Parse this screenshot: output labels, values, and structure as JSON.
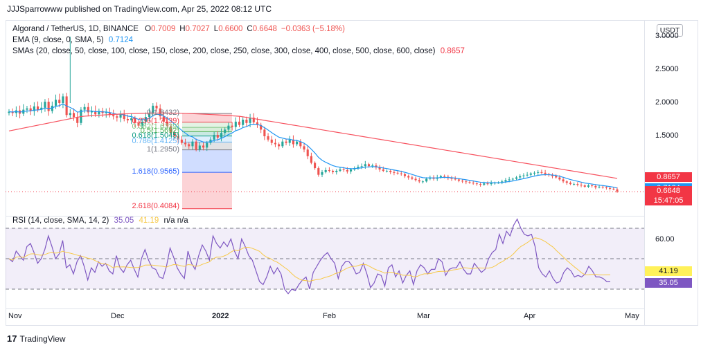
{
  "header": {
    "attribution": "JJJSparrowww published on TradingView.com, Apr 25, 2022 08:12 UTC"
  },
  "legend": {
    "symbol": "Algorand / TetherUS, 1D, BINANCE",
    "ohlc": [
      {
        "label": "O",
        "value": "0.7009"
      },
      {
        "label": "H",
        "value": "0.7027"
      },
      {
        "label": "L",
        "value": "0.6600"
      },
      {
        "label": "C",
        "value": "0.6648"
      },
      {
        "label": "",
        "value": "−0.0363 (−5.18%)"
      }
    ],
    "ema_label": "EMA (9, close, 0, SMA, 5)",
    "ema_value": "0.7124",
    "sma_label": "SMAs (20, close, 50, close, 100, close, 150, close, 200, close, 250, close, 300, close, 400, close, 500, close, 600, close)",
    "sma_value": "0.8657"
  },
  "currency_button": "USDT",
  "price_tags": [
    {
      "text": "0.8657",
      "color": "#f23645"
    },
    {
      "text": "0.7124",
      "color": "#2196f3"
    },
    {
      "text": "0.6648",
      "color": "#f23645"
    },
    {
      "text": "15:47:05",
      "color": "#f23645"
    }
  ],
  "rsi": {
    "legend": "RSI (14, close, SMA, 14, 2)",
    "rsi_value": "35.05",
    "ma_value": "41.19",
    "extra": "n/a  n/a",
    "tick_label": "60.00",
    "tags": [
      {
        "text": "41.19",
        "color": "#fff15a",
        "text_color": "#131722"
      },
      {
        "text": "35.05",
        "color": "#7e57c2",
        "text_color": "#ffffff"
      }
    ]
  },
  "fibonacci": {
    "labels": [
      {
        "text": "0(1.8432)",
        "color": "#787b86"
      },
      {
        "text": "0.236(1.7139)",
        "color": "#f23645"
      },
      {
        "text": "0.382(1.6339)",
        "color": "#81c784"
      },
      {
        "text": "0.5(1.5692)",
        "color": "#4caf50"
      },
      {
        "text": "0.618(1.5045)",
        "color": "#089981"
      },
      {
        "text": "0.786(1.4125)",
        "color": "#64b5f6"
      },
      {
        "text": "1(1.2950)",
        "color": "#787b86"
      },
      {
        "text": "1.618(0.9565)",
        "color": "#2962ff"
      },
      {
        "text": "2.618(0.4084)",
        "color": "#f23645"
      }
    ]
  },
  "footer": {
    "brand": "TradingView",
    "mark": "17"
  },
  "colors": {
    "up": "#26a69a",
    "down": "#ef5350",
    "ema": "#2196f3",
    "sma": "#f7525f",
    "rsi": "#7e57c2",
    "rsi_ma": "#f7c948"
  },
  "chart_data": {
    "type": "candlestick",
    "title": "Algorand / TetherUS, 1D, BINANCE",
    "x_ticks": [
      "Nov",
      "Dec",
      "2022",
      "Feb",
      "Mar",
      "Apr",
      "May"
    ],
    "y_ticks": [
      "3.0000",
      "2.5000",
      "2.0000",
      "1.5000"
    ],
    "ylim": [
      0.4,
      3.05
    ],
    "candles_close": [
      1.87,
      1.85,
      1.89,
      1.84,
      1.9,
      1.92,
      1.88,
      1.95,
      1.9,
      1.93,
      2.02,
      1.88,
      1.96,
      2.05,
      2.0,
      2.1,
      1.82,
      1.85,
      1.79,
      1.7,
      1.9,
      1.94,
      1.86,
      1.88,
      1.83,
      1.88,
      1.85,
      1.86,
      1.82,
      1.8,
      1.78,
      1.84,
      1.76,
      1.74,
      1.77,
      1.7,
      1.66,
      1.72,
      1.79,
      1.84,
      1.96,
      1.92,
      1.8,
      1.72,
      1.65,
      1.55,
      1.5,
      1.45,
      1.4,
      1.38,
      1.35,
      1.42,
      1.3,
      1.36,
      1.33,
      1.4,
      1.45,
      1.52,
      1.48,
      1.55,
      1.6,
      1.66,
      1.64,
      1.72,
      1.67,
      1.75,
      1.7,
      1.78,
      1.71,
      1.67,
      1.6,
      1.5,
      1.45,
      1.4,
      1.38,
      1.35,
      1.42,
      1.4,
      1.45,
      1.38,
      1.42,
      1.35,
      1.3,
      1.2,
      1.1,
      1.02,
      0.92,
      0.96,
      0.99,
      0.98,
      0.96,
      0.98,
      1.0,
      0.99,
      0.97,
      1.0,
      1.02,
      1.04,
      1.05,
      1.08,
      1.05,
      1.06,
      1.03,
      1.0,
      0.98,
      0.98,
      0.96,
      0.95,
      0.94,
      0.93,
      0.9,
      0.88,
      0.86,
      0.84,
      0.82,
      0.82,
      0.86,
      0.88,
      0.86,
      0.88,
      0.9,
      0.89,
      0.87,
      0.86,
      0.85,
      0.83,
      0.82,
      0.81,
      0.8,
      0.79,
      0.78,
      0.77,
      0.79,
      0.78,
      0.8,
      0.8,
      0.8,
      0.82,
      0.84,
      0.85,
      0.86,
      0.88,
      0.9,
      0.91,
      0.92,
      0.94,
      0.95,
      0.96,
      0.95,
      0.93,
      0.92,
      0.9,
      0.88,
      0.85,
      0.82,
      0.8,
      0.78,
      0.78,
      0.77,
      0.76,
      0.74,
      0.76,
      0.75,
      0.73,
      0.74,
      0.73,
      0.72,
      0.71,
      0.7,
      0.665
    ],
    "ema_last": 0.7124,
    "sma_last": 0.8657,
    "last_close": 0.6648,
    "rsi_values": [
      50,
      48,
      55,
      52,
      49,
      58,
      60,
      54,
      47,
      50,
      56,
      65,
      58,
      50,
      53,
      62,
      44,
      46,
      40,
      48,
      52,
      45,
      36,
      44,
      41,
      48,
      45,
      47,
      42,
      40,
      52,
      44,
      41,
      46,
      49,
      43,
      38,
      50,
      56,
      49,
      44,
      43,
      38,
      37,
      45,
      57,
      51,
      44,
      40,
      37,
      55,
      47,
      43,
      52,
      59,
      55,
      49,
      65,
      60,
      57,
      61,
      58,
      63,
      55,
      50,
      63,
      58,
      52,
      49,
      42,
      35,
      33,
      38,
      45,
      40,
      44,
      40,
      30,
      27,
      30,
      29,
      33,
      36,
      38,
      30,
      41,
      45,
      49,
      52,
      54,
      50,
      47,
      37,
      45,
      48,
      48,
      45,
      40,
      41,
      47,
      40,
      31,
      34,
      40,
      39,
      32,
      44,
      46,
      38,
      42,
      34,
      39,
      42,
      33,
      42,
      46,
      44,
      40,
      43,
      43,
      50,
      48,
      39,
      43,
      44,
      44,
      48,
      43,
      40,
      40,
      47,
      44,
      41,
      43,
      50,
      54,
      56,
      66,
      60,
      68,
      65,
      72,
      76,
      70,
      66,
      65,
      66,
      58,
      44,
      40,
      38,
      42,
      37,
      34,
      35,
      41,
      44,
      42,
      38,
      39,
      38,
      40,
      45,
      42,
      38,
      38,
      37,
      35,
      35.05
    ],
    "rsi_ma_last": 41.19,
    "rsi_levels": [
      70,
      50,
      30
    ]
  }
}
